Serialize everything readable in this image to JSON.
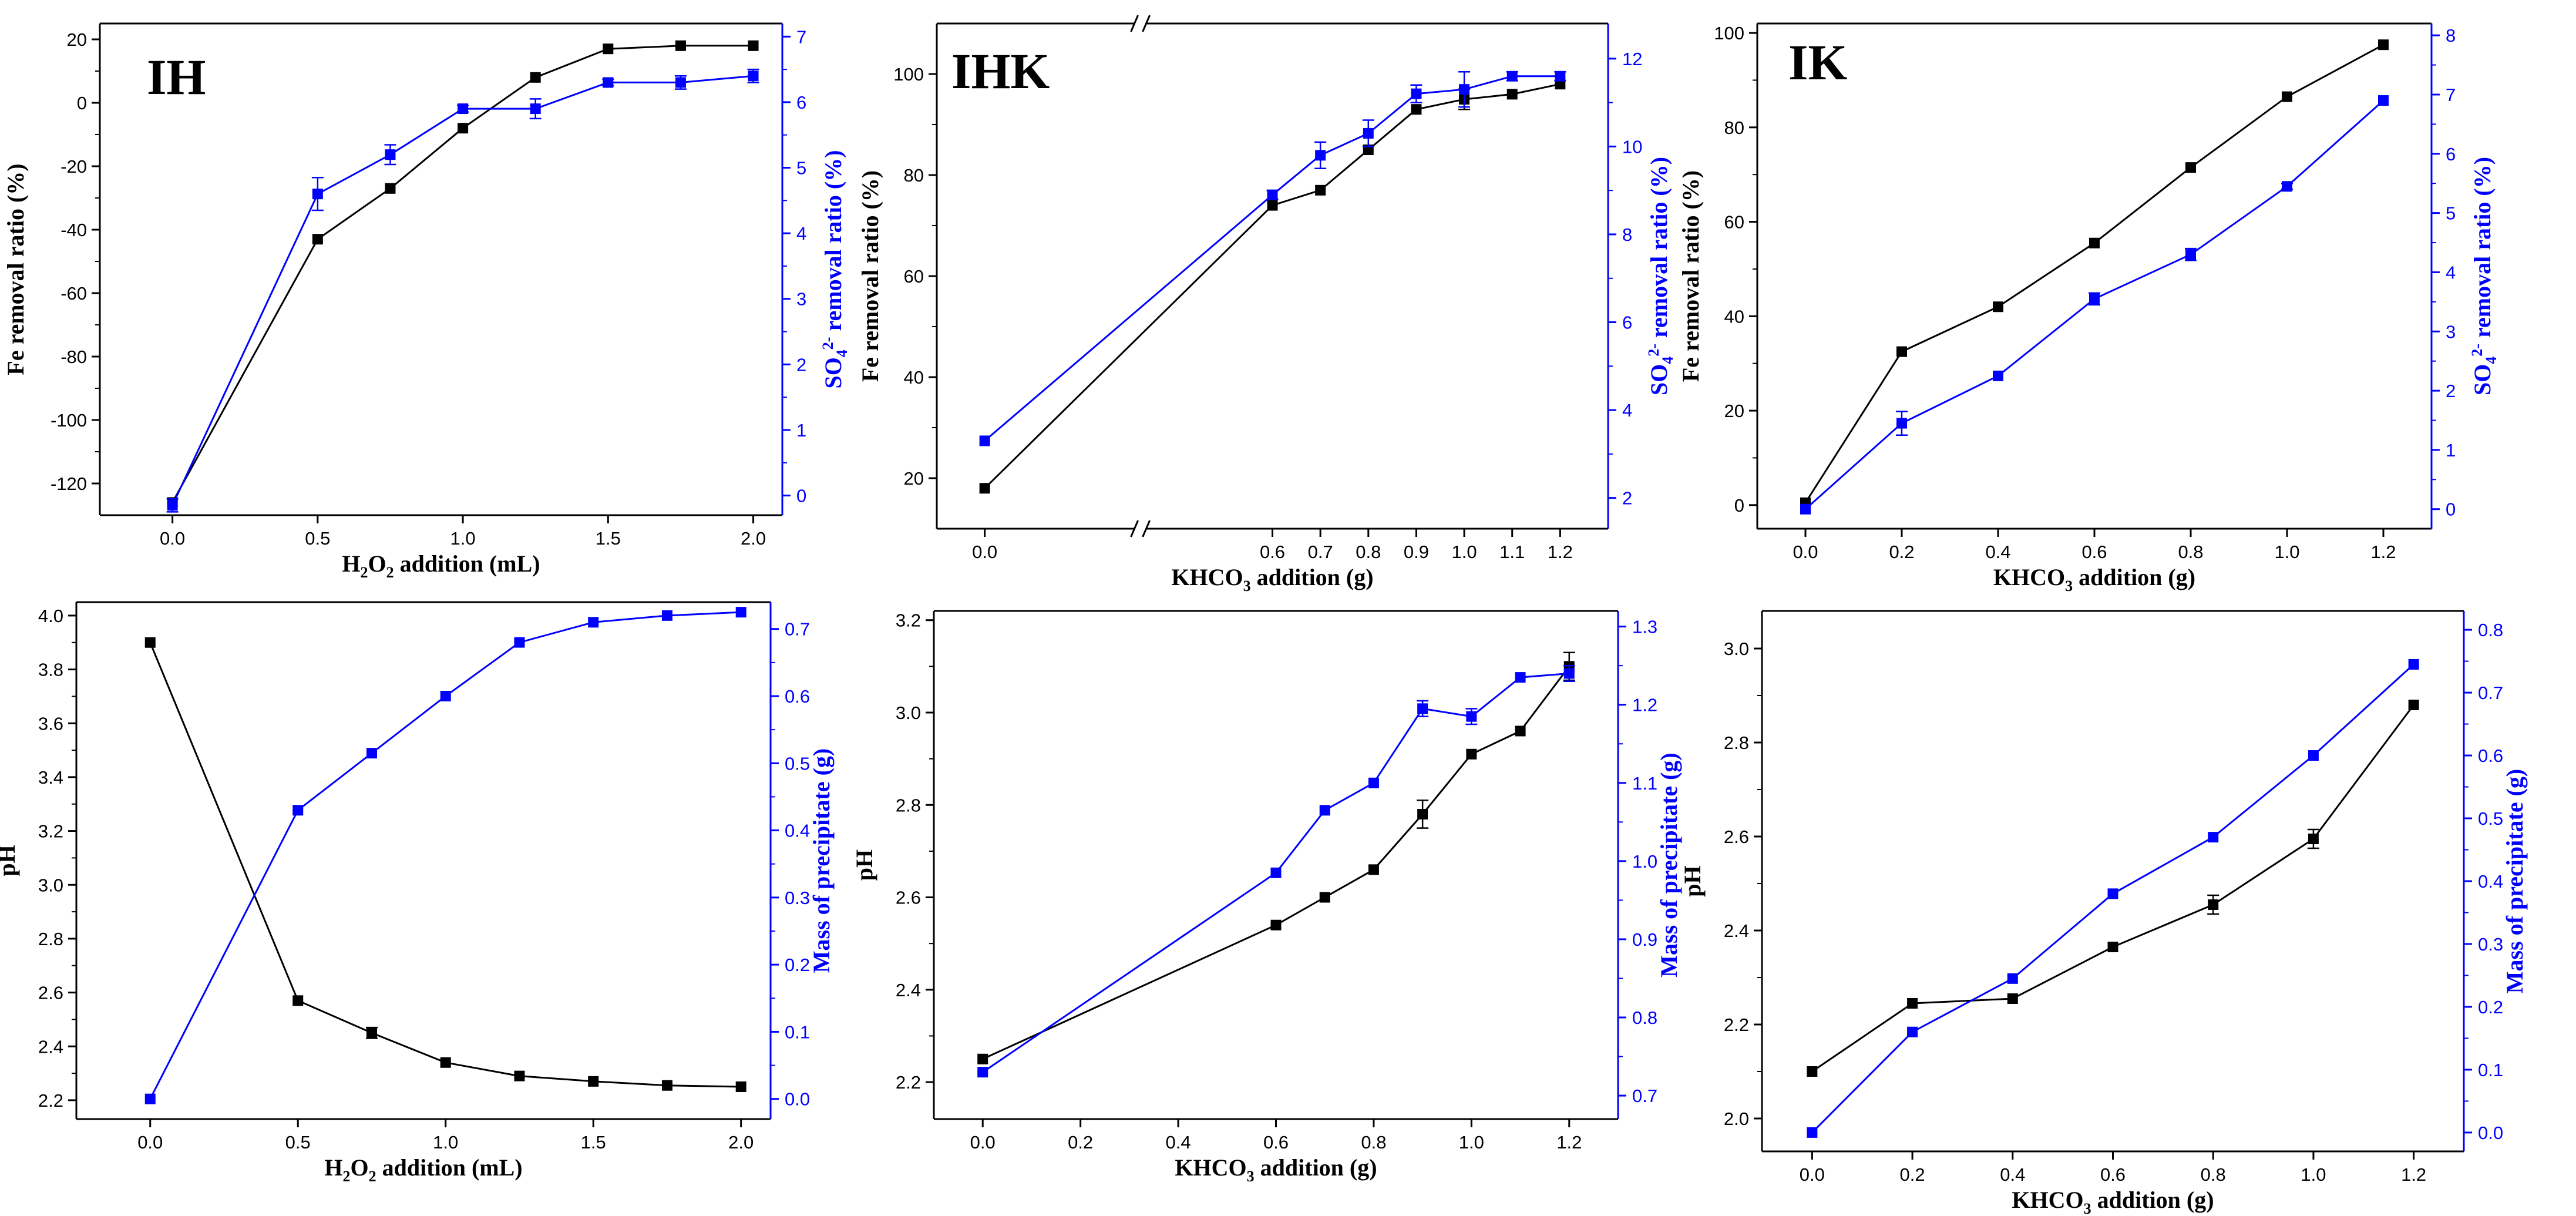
{
  "colors": {
    "fe_series": "#000000",
    "blue_series": "#0000ff",
    "axis": "#000000"
  },
  "chart_data": [
    {
      "type": "line",
      "panel_label": "IH",
      "xlabel": "H2O2 addition (mL)",
      "xlabel_parts": {
        "main": "H",
        "sub1": "2",
        "mid": "O",
        "sub2": "2",
        "tail": " addition (mL)"
      },
      "ylabel": "Fe removal ratio (%)",
      "y2label": "SO42- removal ratio (%)",
      "y2label_parts": {
        "pre": "SO",
        "sub": "4",
        "sup": "2-",
        "tail": " removal ratio (%)"
      },
      "xlim": [
        -0.25,
        2.1
      ],
      "ylim": [
        -130,
        25
      ],
      "y2lim": [
        -0.3,
        7.2
      ],
      "xticks": [
        0.0,
        0.5,
        1.0,
        1.5,
        2.0
      ],
      "xtick_labels": [
        "0.0",
        "0.5",
        "1.0",
        "1.5",
        "2.0"
      ],
      "yticks": [
        -120,
        -100,
        -80,
        -60,
        -40,
        -20,
        0,
        20
      ],
      "ytick_labels": [
        "-120",
        "-100",
        "-80",
        "-60",
        "-40",
        "-20",
        "0",
        "20"
      ],
      "y2ticks": [
        0,
        1,
        2,
        3,
        4,
        5,
        6,
        7
      ],
      "y2tick_labels": [
        "0",
        "1",
        "2",
        "3",
        "4",
        "5",
        "6",
        "7"
      ],
      "x": [
        0.0,
        0.5,
        0.75,
        1.0,
        1.25,
        1.5,
        1.75,
        2.0
      ],
      "series": [
        {
          "name": "Fe removal ratio",
          "axis": "left",
          "color": "#000000",
          "values": [
            -126,
            -43,
            -27,
            -8,
            8,
            17,
            18,
            18
          ],
          "errors": [
            0,
            0,
            0,
            0,
            0,
            0,
            0,
            0
          ]
        },
        {
          "name": "SO4 removal ratio",
          "axis": "right",
          "color": "#0000ff",
          "values": [
            -0.15,
            4.6,
            5.2,
            5.9,
            5.9,
            6.3,
            6.3,
            6.4
          ],
          "errors": [
            0.1,
            0.25,
            0.15,
            0.05,
            0.15,
            0.05,
            0.1,
            0.1
          ]
        }
      ]
    },
    {
      "type": "line",
      "panel_label": "IHK",
      "xlabel": "KHCO3 addition (g)",
      "xlabel_parts": {
        "main": "KHCO",
        "sub1": "3",
        "tail": " addition (g)"
      },
      "ylabel": "Fe removal ratio (%)",
      "y2label": "SO42- removal ratio (%)",
      "y2label_parts": {
        "pre": "SO",
        "sub": "4",
        "sup": "2-",
        "tail": " removal ratio (%)"
      },
      "axis_break": true,
      "xlim": [
        -0.1,
        1.3
      ],
      "ylim": [
        10,
        110
      ],
      "y2lim": [
        1.3,
        12.8
      ],
      "xticks": [
        0.0,
        0.6,
        0.7,
        0.8,
        0.9,
        1.0,
        1.1,
        1.2
      ],
      "xtick_labels": [
        "0.0",
        "0.6",
        "0.7",
        "0.8",
        "0.9",
        "1.0",
        "1.1",
        "1.2"
      ],
      "yticks": [
        20,
        40,
        60,
        80,
        100
      ],
      "ytick_labels": [
        "20",
        "40",
        "60",
        "80",
        "100"
      ],
      "y2ticks": [
        2,
        4,
        6,
        8,
        10,
        12
      ],
      "y2tick_labels": [
        "2",
        "4",
        "6",
        "8",
        "10",
        "12"
      ],
      "x": [
        0.0,
        0.6,
        0.7,
        0.8,
        0.9,
        1.0,
        1.1,
        1.2
      ],
      "series": [
        {
          "name": "Fe removal ratio",
          "axis": "left",
          "color": "#000000",
          "values": [
            18,
            74,
            77,
            85,
            93,
            95,
            96,
            98
          ],
          "errors": [
            0,
            0,
            0,
            0,
            0,
            2,
            0,
            0
          ]
        },
        {
          "name": "SO4 removal ratio",
          "axis": "right",
          "color": "#0000ff",
          "values": [
            3.3,
            8.9,
            9.8,
            10.3,
            11.2,
            11.3,
            11.6,
            11.6
          ],
          "errors": [
            0,
            0.1,
            0.3,
            0.3,
            0.2,
            0.4,
            0.1,
            0.1
          ]
        }
      ]
    },
    {
      "type": "line",
      "panel_label": "IK",
      "xlabel": "KHCO3 addition (g)",
      "xlabel_parts": {
        "main": "KHCO",
        "sub1": "3",
        "tail": " addition (g)"
      },
      "ylabel": "Fe removal ratio (%)",
      "y2label": "SO42- removal ratio (%)",
      "y2label_parts": {
        "pre": "SO",
        "sub": "4",
        "sup": "2-",
        "tail": " removal ratio (%)"
      },
      "xlim": [
        -0.1,
        1.3
      ],
      "ylim": [
        -5,
        102
      ],
      "y2lim": [
        -0.33,
        8.2
      ],
      "xticks": [
        0.0,
        0.2,
        0.4,
        0.6,
        0.8,
        1.0,
        1.2
      ],
      "xtick_labels": [
        "0.0",
        "0.2",
        "0.4",
        "0.6",
        "0.8",
        "1.0",
        "1.2"
      ],
      "yticks": [
        0,
        20,
        40,
        60,
        80,
        100
      ],
      "ytick_labels": [
        "0",
        "20",
        "40",
        "60",
        "80",
        "100"
      ],
      "y2ticks": [
        0,
        1,
        2,
        3,
        4,
        5,
        6,
        7,
        8
      ],
      "y2tick_labels": [
        "0",
        "1",
        "2",
        "3",
        "4",
        "5",
        "6",
        "7",
        "8"
      ],
      "x": [
        0.0,
        0.2,
        0.4,
        0.6,
        0.8,
        1.0,
        1.2
      ],
      "series": [
        {
          "name": "Fe removal ratio",
          "axis": "left",
          "color": "#000000",
          "values": [
            0.5,
            32.5,
            42,
            55.5,
            71.5,
            86.5,
            97.5
          ],
          "errors": [
            0,
            0,
            0,
            0,
            0,
            0,
            0
          ]
        },
        {
          "name": "SO4 removal ratio",
          "axis": "right",
          "color": "#0000ff",
          "values": [
            0,
            1.45,
            2.25,
            3.55,
            4.3,
            5.45,
            6.9
          ],
          "errors": [
            0,
            0.2,
            0,
            0.1,
            0.1,
            0.05,
            0
          ]
        }
      ]
    },
    {
      "type": "line",
      "panel_label": "",
      "xlabel": "H2O2 addition (mL)",
      "xlabel_parts": {
        "main": "H",
        "sub1": "2",
        "mid": "O",
        "sub2": "2",
        "tail": " addition (mL)"
      },
      "ylabel": "pH",
      "y2label": "Mass of precipitate (g)",
      "xlim": [
        -0.25,
        2.1
      ],
      "ylim": [
        2.13,
        4.05
      ],
      "y2lim": [
        -0.03,
        0.74
      ],
      "xticks": [
        0.0,
        0.5,
        1.0,
        1.5,
        2.0
      ],
      "xtick_labels": [
        "0.0",
        "0.5",
        "1.0",
        "1.5",
        "2.0"
      ],
      "yticks": [
        2.2,
        2.4,
        2.6,
        2.8,
        3.0,
        3.2,
        3.4,
        3.6,
        3.8,
        4.0
      ],
      "ytick_labels": [
        "2.2",
        "2.4",
        "2.6",
        "2.8",
        "3.0",
        "3.2",
        "3.4",
        "3.6",
        "3.8",
        "4.0"
      ],
      "y2ticks": [
        0.0,
        0.1,
        0.2,
        0.3,
        0.4,
        0.5,
        0.6,
        0.7
      ],
      "y2tick_labels": [
        "0.0",
        "0.1",
        "0.2",
        "0.3",
        "0.4",
        "0.5",
        "0.6",
        "0.7"
      ],
      "x": [
        0.0,
        0.5,
        0.75,
        1.0,
        1.25,
        1.5,
        1.75,
        2.0
      ],
      "series": [
        {
          "name": "pH",
          "axis": "left",
          "color": "#000000",
          "values": [
            3.9,
            2.57,
            2.45,
            2.34,
            2.29,
            2.27,
            2.255,
            2.25
          ],
          "errors": [
            0,
            0,
            0.02,
            0,
            0,
            0,
            0,
            0
          ]
        },
        {
          "name": "Mass of precipitate",
          "axis": "right",
          "color": "#0000ff",
          "values": [
            0.0,
            0.43,
            0.515,
            0.6,
            0.68,
            0.71,
            0.72,
            0.725
          ],
          "errors": [
            0,
            0,
            0,
            0,
            0,
            0,
            0,
            0
          ]
        }
      ]
    },
    {
      "type": "line",
      "panel_label": "",
      "xlabel": "KHCO3 addition (g)",
      "xlabel_parts": {
        "main": "KHCO",
        "sub1": "3",
        "tail": " addition (g)"
      },
      "ylabel": "pH",
      "y2label": "Mass of precipitate (g)",
      "xlim": [
        -0.1,
        1.3
      ],
      "ylim": [
        2.12,
        3.22
      ],
      "y2lim": [
        0.67,
        1.32
      ],
      "xticks": [
        0.0,
        0.2,
        0.4,
        0.6,
        0.8,
        1.0,
        1.2
      ],
      "xtick_labels": [
        "0.0",
        "0.2",
        "0.4",
        "0.6",
        "0.8",
        "1.0",
        "1.2"
      ],
      "yticks": [
        2.2,
        2.4,
        2.6,
        2.8,
        3.0,
        3.2
      ],
      "ytick_labels": [
        "2.2",
        "2.4",
        "2.6",
        "2.8",
        "3.0",
        "3.2"
      ],
      "y2ticks": [
        0.7,
        0.8,
        0.9,
        1.0,
        1.1,
        1.2,
        1.3
      ],
      "y2tick_labels": [
        "0.7",
        "0.8",
        "0.9",
        "1.0",
        "1.1",
        "1.2",
        "1.3"
      ],
      "x": [
        0.0,
        0.6,
        0.7,
        0.8,
        0.9,
        1.0,
        1.1,
        1.2
      ],
      "series": [
        {
          "name": "pH",
          "axis": "left",
          "color": "#000000",
          "values": [
            2.25,
            2.54,
            2.6,
            2.66,
            2.78,
            2.91,
            2.96,
            3.1
          ],
          "errors": [
            0,
            0,
            0,
            0,
            0.03,
            0,
            0,
            0.03
          ]
        },
        {
          "name": "Mass of precipitate",
          "axis": "right",
          "color": "#0000ff",
          "values": [
            0.73,
            0.985,
            1.065,
            1.1,
            1.195,
            1.185,
            1.235,
            1.24
          ],
          "errors": [
            0,
            0,
            0,
            0,
            0.01,
            0.01,
            0,
            0.01
          ]
        }
      ]
    },
    {
      "type": "line",
      "panel_label": "",
      "xlabel": "KHCO3 addition (g)",
      "xlabel_parts": {
        "main": "KHCO",
        "sub1": "3",
        "tail": " addition (g)"
      },
      "ylabel": "pH",
      "y2label": "Mass of precipitate (g)",
      "xlim": [
        -0.1,
        1.3
      ],
      "ylim": [
        1.93,
        3.08
      ],
      "y2lim": [
        -0.03,
        0.83
      ],
      "xticks": [
        0.0,
        0.2,
        0.4,
        0.6,
        0.8,
        1.0,
        1.2
      ],
      "xtick_labels": [
        "0.0",
        "0.2",
        "0.4",
        "0.6",
        "0.8",
        "1.0",
        "1.2"
      ],
      "yticks": [
        2.0,
        2.2,
        2.4,
        2.6,
        2.8,
        3.0
      ],
      "ytick_labels": [
        "2.0",
        "2.2",
        "2.4",
        "2.6",
        "2.8",
        "3.0"
      ],
      "y2ticks": [
        0.0,
        0.1,
        0.2,
        0.3,
        0.4,
        0.5,
        0.6,
        0.7,
        0.8
      ],
      "y2tick_labels": [
        "0.0",
        "0.1",
        "0.2",
        "0.3",
        "0.4",
        "0.5",
        "0.6",
        "0.7",
        "0.8"
      ],
      "x": [
        0.0,
        0.2,
        0.4,
        0.6,
        0.8,
        1.0,
        1.2
      ],
      "series": [
        {
          "name": "pH",
          "axis": "left",
          "color": "#000000",
          "values": [
            2.1,
            2.245,
            2.255,
            2.365,
            2.455,
            2.595,
            2.88
          ],
          "errors": [
            0,
            0,
            0,
            0,
            0.02,
            0.02,
            0
          ]
        },
        {
          "name": "Mass of precipitate",
          "axis": "right",
          "color": "#0000ff",
          "values": [
            0.0,
            0.16,
            0.245,
            0.38,
            0.47,
            0.6,
            0.745
          ],
          "errors": [
            0,
            0,
            0,
            0,
            0,
            0,
            0
          ]
        }
      ]
    }
  ]
}
